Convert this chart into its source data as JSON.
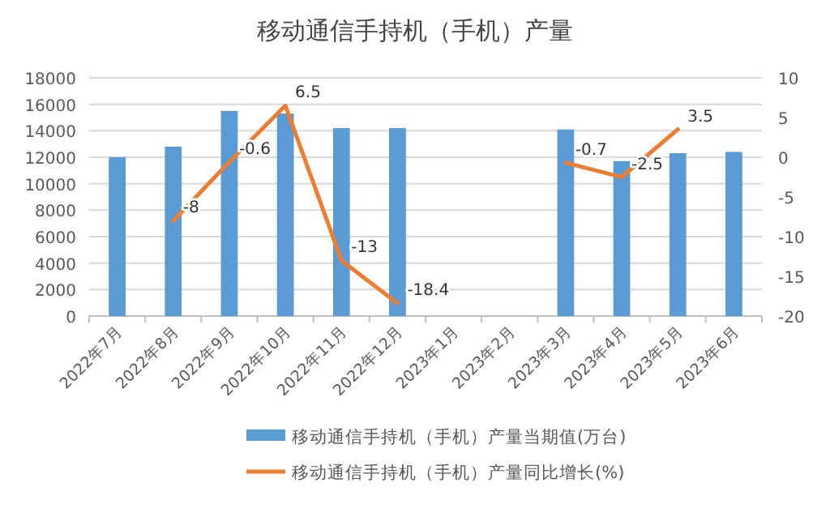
{
  "chart_data": {
    "type": "bar",
    "title": "移动通信手持机（手机）产量",
    "categories": [
      "2022年7月",
      "2022年8月",
      "2022年9月",
      "2022年10月",
      "2022年11月",
      "2022年12月",
      "2023年1月",
      "2023年2月",
      "2023年3月",
      "2023年4月",
      "2023年5月",
      "2023年6月"
    ],
    "series": [
      {
        "name": "移动通信手持机（手机）产量当期值(万台)",
        "color": "#5b9bd5",
        "values": [
          12000,
          12800,
          15500,
          15300,
          14200,
          14200,
          null,
          null,
          14100,
          11700,
          12300,
          12400
        ]
      },
      {
        "name": "移动通信手持机（手机）产量同比增长(%)",
        "type": "line",
        "axis": "y2",
        "color": "#ed7d31",
        "values": [
          null,
          -8,
          -0.6,
          6.5,
          -13,
          -18.4,
          null,
          null,
          -0.7,
          -2.5,
          3.5,
          null
        ],
        "value_labels": [
          null,
          "-8",
          "-0.6",
          "6.5",
          "-13",
          "-18.4",
          null,
          null,
          "-0.7",
          "-2.5",
          "3.5",
          null
        ]
      }
    ],
    "ylim": [
      0,
      18000
    ],
    "yticks": [
      0,
      2000,
      4000,
      6000,
      8000,
      10000,
      12000,
      14000,
      16000,
      18000
    ],
    "y2lim": [
      -20,
      10
    ],
    "y2ticks": [
      -20,
      -15,
      -10,
      -5,
      0,
      5,
      10
    ],
    "grid": "y",
    "legend": "bottom",
    "marker": "none",
    "line_style": "solid"
  }
}
